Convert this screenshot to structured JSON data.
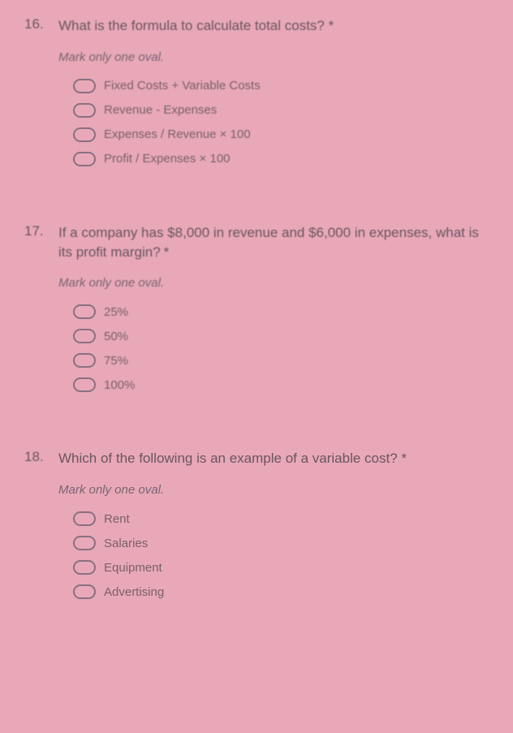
{
  "background_color": "#e8a8b8",
  "text_color": "#6b5560",
  "questions": [
    {
      "number": "16.",
      "text": "What is the formula to calculate total costs? *",
      "instruction": "Mark only one oval.",
      "options": [
        "Fixed Costs + Variable Costs",
        "Revenue - Expenses",
        "Expenses / Revenue × 100",
        "Profit / Expenses × 100"
      ]
    },
    {
      "number": "17.",
      "text": "If a company has $8,000 in revenue and $6,000 in expenses, what is its profit margin?",
      "instruction": "Mark only one oval.",
      "options": [
        "25%",
        "50%",
        "75%",
        "100%"
      ]
    },
    {
      "number": "18.",
      "text": "Which of the following is an example of a variable cost? *",
      "instruction": "Mark only one oval.",
      "options": [
        "Rent",
        "Salaries",
        "Equipment",
        "Advertising"
      ]
    }
  ]
}
